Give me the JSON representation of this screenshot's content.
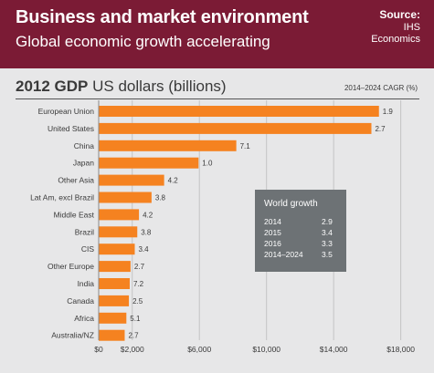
{
  "header": {
    "title": "Business and market environment",
    "subtitle": "Global economic growth accelerating",
    "source_label": "Source:",
    "source_lines": [
      "IHS",
      "Economics"
    ]
  },
  "chart_data": {
    "type": "bar",
    "orientation": "horizontal",
    "title_bold": "2012 GDP",
    "title_rest": "US dollars (billions)",
    "secondary_label": "2014–2024 CAGR (%)",
    "categories": [
      "European Union",
      "United States",
      "China",
      "Japan",
      "Other Asia",
      "Lat Am, excl Brazil",
      "Middle East",
      "Brazil",
      "CIS",
      "Other Europe",
      "India",
      "Canada",
      "Africa",
      "Australia/NZ"
    ],
    "values": [
      16700,
      16250,
      8200,
      5950,
      3900,
      3150,
      2400,
      2300,
      2150,
      1900,
      1850,
      1800,
      1650,
      1550
    ],
    "cagr_labels": [
      "1.9",
      "2.7",
      "7.1",
      "1.0",
      "4.2",
      "3.8",
      "4.2",
      "3.8",
      "3.4",
      "2.7",
      "7.2",
      "2.5",
      "5.1",
      "2.7"
    ],
    "xlim": [
      0,
      19000
    ],
    "xticks": [
      0,
      2000,
      6000,
      10000,
      14000,
      18000
    ],
    "xtick_labels": [
      "$0",
      "$2,000",
      "$6,000",
      "$10,000",
      "$14,000",
      "$18,000"
    ],
    "grid": true,
    "bar_color": "#f58220"
  },
  "world_growth": {
    "title": "World growth",
    "rows": [
      {
        "year": "2014",
        "value": "2.9"
      },
      {
        "year": "2015",
        "value": "3.4"
      },
      {
        "year": "2016",
        "value": "3.3"
      },
      {
        "year": "2014–2024",
        "value": "3.5"
      }
    ]
  }
}
